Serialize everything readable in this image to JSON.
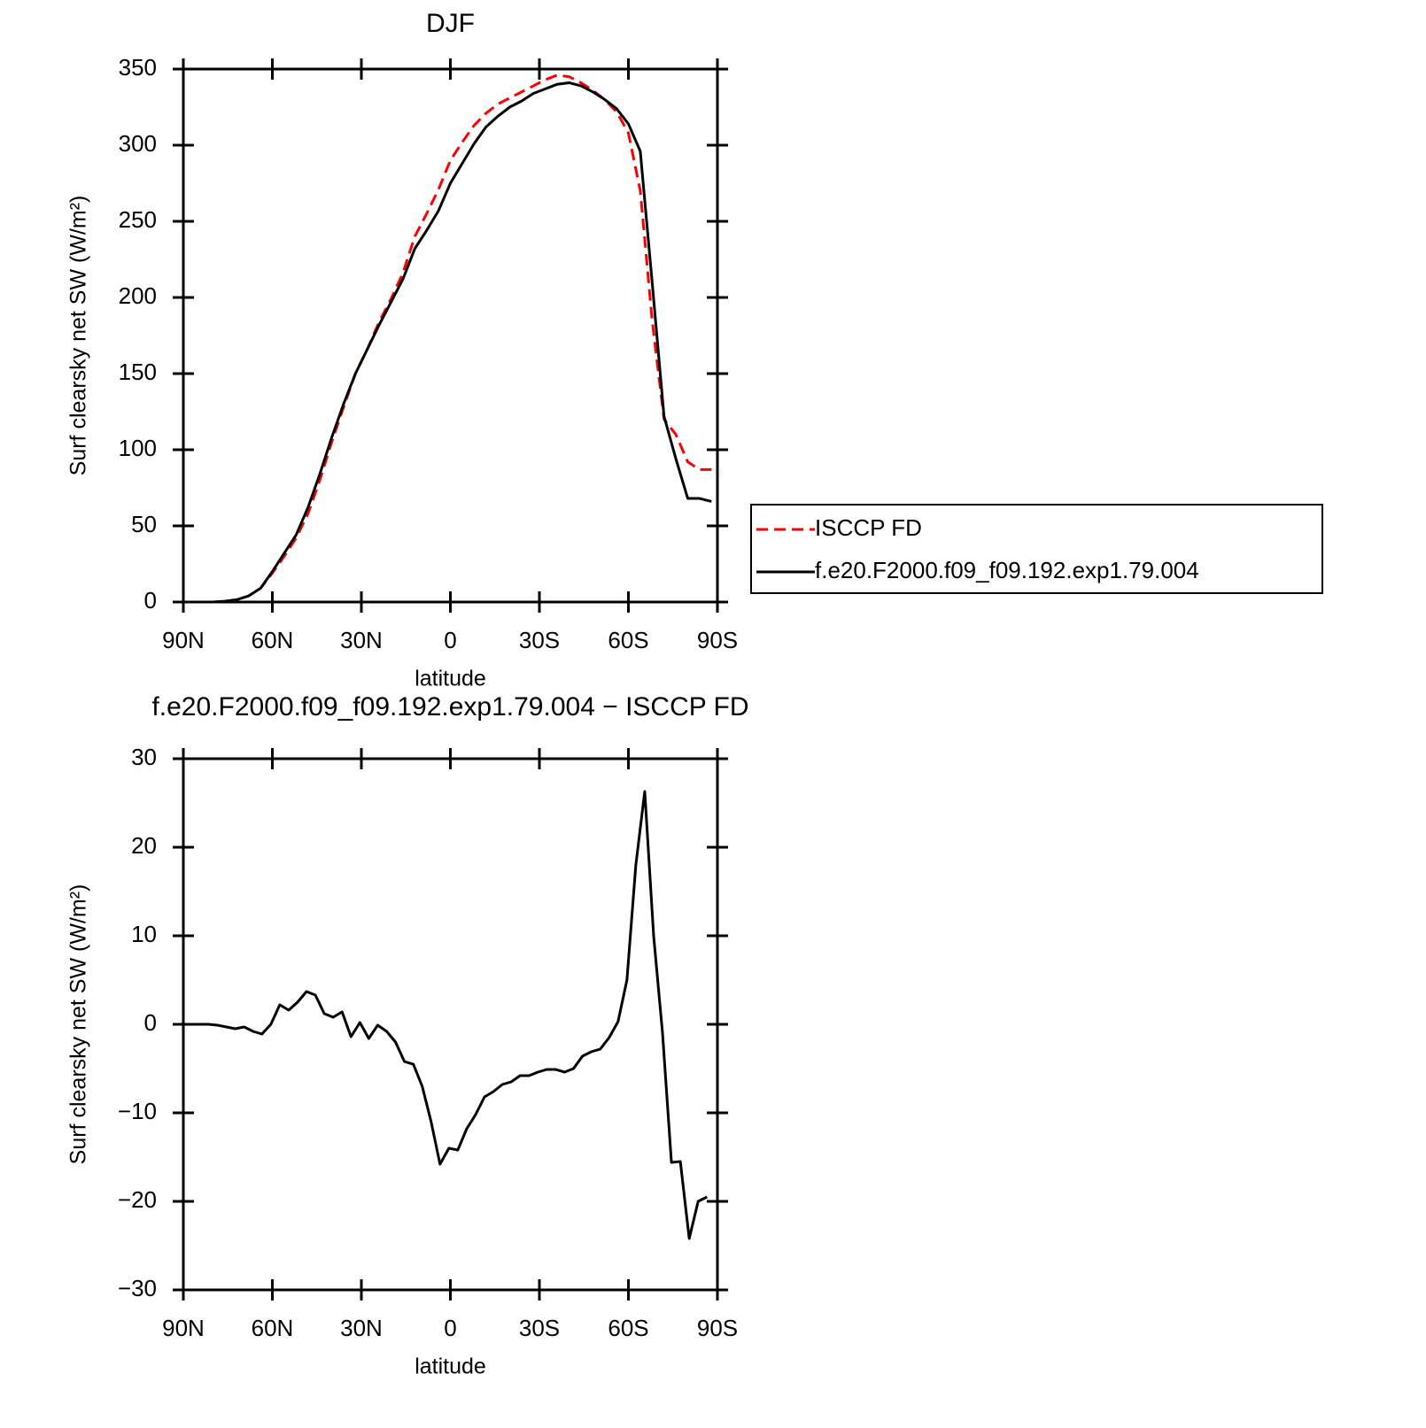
{
  "chart_data": [
    {
      "type": "line",
      "title": "DJF",
      "x_label": "latitude",
      "y_label": "Surf clearsky net SW (W/m²)",
      "x": [
        88,
        84,
        80,
        76,
        72,
        68,
        64,
        60,
        56,
        52,
        48,
        44,
        40,
        36,
        32,
        28,
        24,
        20,
        16,
        12,
        8,
        4,
        0,
        -4,
        -8,
        -12,
        -16,
        -20,
        -24,
        -28,
        -32,
        -36,
        -40,
        -44,
        -48,
        -52,
        -56,
        -60,
        -64,
        -68,
        -72,
        -76,
        -80,
        -84,
        -88
      ],
      "series": [
        {
          "name": "ISCCP FD",
          "color": "#ff0000",
          "dash": "dashed",
          "values": [
            0,
            0,
            0,
            0.5,
            1.5,
            4,
            9,
            19,
            30,
            42,
            58,
            80,
            105,
            128,
            150,
            166,
            184,
            199,
            216,
            240,
            255,
            271,
            290,
            302,
            313,
            321,
            327,
            331,
            335,
            339,
            343,
            346,
            345,
            341,
            336,
            330,
            322,
            308,
            270,
            185,
            120,
            110,
            92,
            87,
            87
          ]
        },
        {
          "name": "f.e20.F2000.f09_f09.192.exp1.79.004",
          "color": "#000000",
          "dash": "solid",
          "values": [
            0,
            0,
            0,
            0.5,
            1.5,
            4,
            9,
            20,
            32,
            44,
            62,
            84,
            108,
            130,
            150,
            166,
            182,
            197,
            212,
            232,
            244,
            257,
            275,
            288,
            301,
            312,
            319,
            325,
            329,
            334,
            337,
            340,
            341,
            339,
            335,
            330,
            324,
            314,
            296,
            210,
            122,
            94,
            68,
            68,
            66
          ]
        }
      ],
      "xlim": [
        90,
        -90
      ],
      "xticks": [
        {
          "value": 90,
          "label": "90N"
        },
        {
          "value": 60,
          "label": "60N"
        },
        {
          "value": 30,
          "label": "30N"
        },
        0,
        {
          "value": -30,
          "label": "30S"
        },
        {
          "value": -60,
          "label": "60S"
        },
        {
          "value": -90,
          "label": "90S"
        }
      ],
      "ylim": [
        0,
        350
      ],
      "yticks": [
        0,
        50,
        100,
        150,
        200,
        250,
        300,
        350
      ],
      "legend": "outside right"
    },
    {
      "type": "line",
      "title": "f.e20.F2000.f09_f09.192.exp1.79.004 − ISCCP FD",
      "x_label": "latitude",
      "y_label": "Surf clearsky net SW (W/m²)",
      "x": [
        87.5,
        84.5,
        81.5,
        78.5,
        75.5,
        72.5,
        69.5,
        66.5,
        63.5,
        60.5,
        57.5,
        54.5,
        51.5,
        48.5,
        45.5,
        42.5,
        39.5,
        36.5,
        33.5,
        30.5,
        27.5,
        24.5,
        21.5,
        18.5,
        15.5,
        12.5,
        9.5,
        6.5,
        3.5,
        0.5,
        -2.5,
        -5.5,
        -8.5,
        -11.5,
        -14.5,
        -17.5,
        -20.5,
        -23.5,
        -26.5,
        -29.5,
        -32.5,
        -35.5,
        -38.5,
        -41.5,
        -44.5,
        -47.5,
        -50.5,
        -53.5,
        -56.5,
        -59.5,
        -62.5,
        -65.5,
        -68.5,
        -71.5,
        -74.5,
        -77.5,
        -80.5,
        -83.5,
        -86.5
      ],
      "values": [
        0,
        0,
        0,
        -0.1,
        -0.3,
        -0.5,
        -0.3,
        -0.8,
        -1.1,
        0,
        2.2,
        1.6,
        2.5,
        3.7,
        3.3,
        1.2,
        0.8,
        1.4,
        -1.4,
        0.2,
        -1.6,
        -0.1,
        -0.8,
        -2,
        -4.2,
        -4.5,
        -7,
        -11,
        -15.8,
        -14,
        -14.2,
        -11.8,
        -10.2,
        -8.2,
        -7.6,
        -6.8,
        -6.5,
        -5.8,
        -5.8,
        -5.4,
        -5.1,
        -5.1,
        -5.4,
        -5,
        -3.6,
        -3.1,
        -2.8,
        -1.5,
        0.3,
        5,
        18,
        26.3,
        10,
        -1,
        -15.6,
        -15.5,
        -24.2,
        -20,
        -19.5
      ],
      "color": "#000000",
      "xlim": [
        90,
        -90
      ],
      "xticks": [
        {
          "value": 90,
          "label": "90N"
        },
        {
          "value": 60,
          "label": "60N"
        },
        {
          "value": 30,
          "label": "30N"
        },
        0,
        {
          "value": -30,
          "label": "30S"
        },
        {
          "value": -60,
          "label": "60S"
        },
        {
          "value": -90,
          "label": "90S"
        }
      ],
      "ylim": [
        -30,
        30
      ],
      "yticks": [
        {
          "value": -30,
          "label": "−30"
        },
        {
          "value": -20,
          "label": "−20"
        },
        {
          "value": -10,
          "label": "−10"
        },
        0,
        10,
        20,
        30
      ]
    }
  ]
}
